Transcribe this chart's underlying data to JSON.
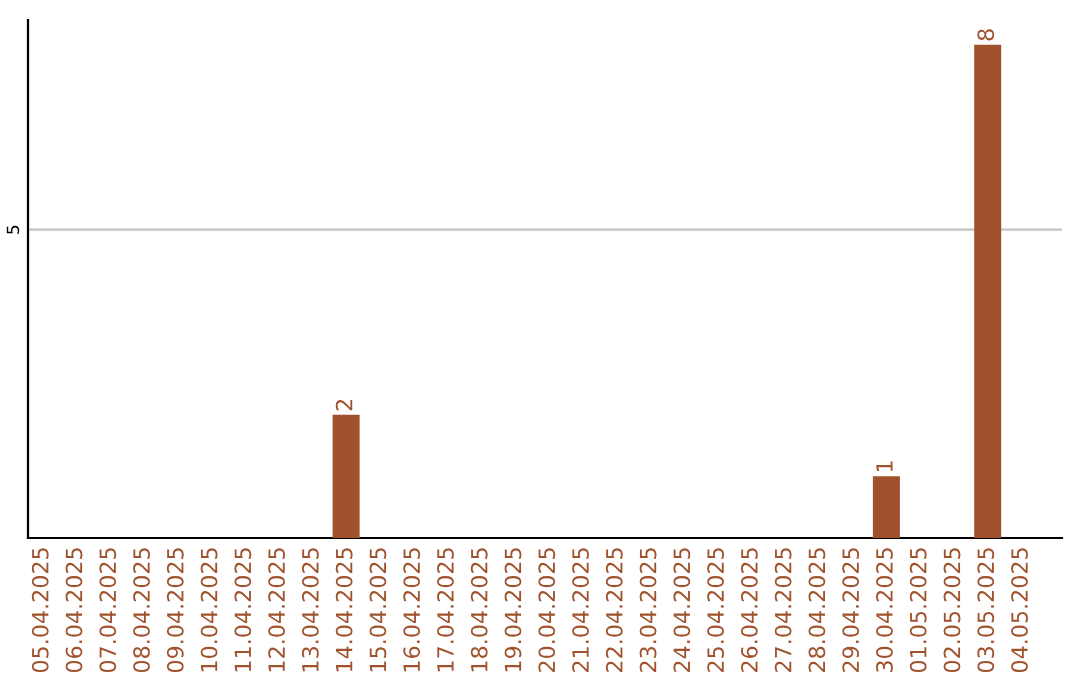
{
  "chart_data": {
    "type": "bar",
    "categories": [
      "05.04.2025",
      "06.04.2025",
      "07.04.2025",
      "08.04.2025",
      "09.04.2025",
      "10.04.2025",
      "11.04.2025",
      "12.04.2025",
      "13.04.2025",
      "14.04.2025",
      "15.04.2025",
      "16.04.2025",
      "17.04.2025",
      "18.04.2025",
      "19.04.2025",
      "20.04.2025",
      "21.04.2025",
      "22.04.2025",
      "23.04.2025",
      "24.04.2025",
      "25.04.2025",
      "26.04.2025",
      "27.04.2025",
      "28.04.2025",
      "29.04.2025",
      "30.04.2025",
      "01.05.2025",
      "02.05.2025",
      "03.05.2025",
      "04.05.2025"
    ],
    "values": [
      0,
      0,
      0,
      0,
      0,
      0,
      0,
      0,
      0,
      2,
      0,
      0,
      0,
      0,
      0,
      0,
      0,
      0,
      0,
      0,
      0,
      0,
      0,
      0,
      0,
      1,
      0,
      0,
      8,
      0
    ],
    "value_labels": [
      null,
      null,
      null,
      null,
      null,
      null,
      null,
      null,
      null,
      "2",
      null,
      null,
      null,
      null,
      null,
      null,
      null,
      null,
      null,
      null,
      null,
      null,
      null,
      null,
      null,
      "1",
      null,
      null,
      "8",
      null
    ],
    "color": "#a0522d",
    "ylim": [
      0,
      8.4
    ],
    "yticks": [
      5
    ],
    "grid": "y",
    "legend": false
  }
}
